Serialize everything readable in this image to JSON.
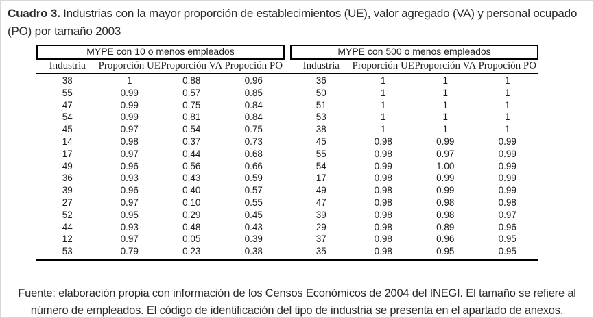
{
  "title": {
    "label": "Cuadro 3.",
    "text": " Industrias con la mayor proporción de establecimientos (UE), valor agregado (VA) y personal ocupado (PO) por tamaño 2003"
  },
  "table": {
    "groups": [
      {
        "header": "MYPE con 10 o menos empleados",
        "columns": [
          "Industria",
          "Proporción UE",
          "Proporción VA",
          "Propoción PO"
        ],
        "rows": [
          [
            "38",
            "1",
            "0.88",
            "0.96"
          ],
          [
            "55",
            "0.99",
            "0.57",
            "0.85"
          ],
          [
            "47",
            "0.99",
            "0.75",
            "0.84"
          ],
          [
            "54",
            "0.99",
            "0.81",
            "0.84"
          ],
          [
            "45",
            "0.97",
            "0.54",
            "0.75"
          ],
          [
            "14",
            "0.98",
            "0.37",
            "0.73"
          ],
          [
            "17",
            "0.97",
            "0.44",
            "0.68"
          ],
          [
            "49",
            "0.96",
            "0.56",
            "0.66"
          ],
          [
            "36",
            "0.93",
            "0.43",
            "0.59"
          ],
          [
            "39",
            "0.96",
            "0.40",
            "0.57"
          ],
          [
            "27",
            "0.97",
            "0.10",
            "0.55"
          ],
          [
            "52",
            "0.95",
            "0.29",
            "0.45"
          ],
          [
            "44",
            "0.93",
            "0.48",
            "0.43"
          ],
          [
            "12",
            "0.97",
            "0.05",
            "0.39"
          ],
          [
            "53",
            "0.79",
            "0.23",
            "0.38"
          ]
        ]
      },
      {
        "header": "MYPE con 500 o menos empleados",
        "columns": [
          "Industria",
          "Proporción UE",
          "Proporción VA",
          "Propoción PO"
        ],
        "rows": [
          [
            "36",
            "1",
            "1",
            "1"
          ],
          [
            "50",
            "1",
            "1",
            "1"
          ],
          [
            "51",
            "1",
            "1",
            "1"
          ],
          [
            "53",
            "1",
            "1",
            "1"
          ],
          [
            "38",
            "1",
            "1",
            "1"
          ],
          [
            "45",
            "0.98",
            "0.99",
            "0.99"
          ],
          [
            "55",
            "0.98",
            "0.97",
            "0.99"
          ],
          [
            "54",
            "0.99",
            "1.00",
            "0.99"
          ],
          [
            "17",
            "0.98",
            "0.99",
            "0.99"
          ],
          [
            "49",
            "0.98",
            "0.99",
            "0.99"
          ],
          [
            "47",
            "0.98",
            "0.98",
            "0.98"
          ],
          [
            "39",
            "0.98",
            "0.98",
            "0.97"
          ],
          [
            "29",
            "0.98",
            "0.89",
            "0.96"
          ],
          [
            "37",
            "0.98",
            "0.96",
            "0.95"
          ],
          [
            "35",
            "0.98",
            "0.95",
            "0.95"
          ]
        ]
      }
    ]
  },
  "footer": "Fuente: elaboración propia con información de los Censos Económicos de 2004 del INEGI. El tamaño se refiere al número de empleados. El código de identificación del tipo de industria se presenta en el apartado de anexos."
}
